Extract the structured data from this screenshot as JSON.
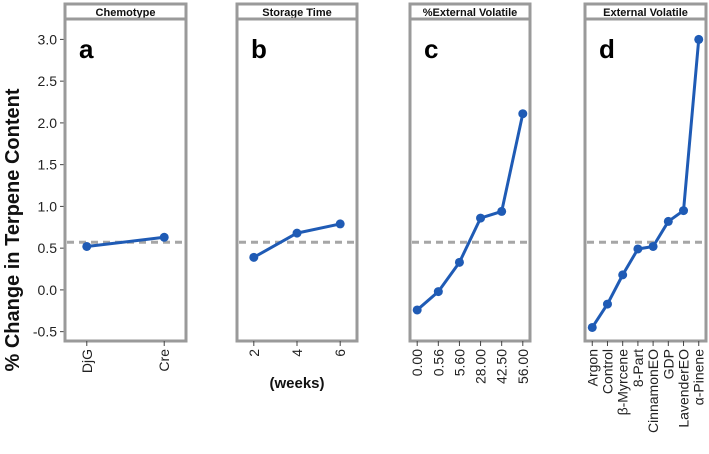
{
  "figure": {
    "ylabel": "% Change in Terpene Content",
    "yticks": [
      3.0,
      2.5,
      2.0,
      1.5,
      1.0,
      0.5,
      0.0,
      -0.5
    ],
    "ytick_labels": [
      "3.0",
      "2.5",
      "2.0",
      "1.5",
      "1.0",
      "0.5",
      "0.0",
      "-0.5"
    ],
    "reference_line": 0.57,
    "colors": {
      "line": "#1f5bb5",
      "reference": "#a6a6a6",
      "frame": "#9a9a9a",
      "strip_bg": "#ffffff"
    }
  },
  "chart_data": [
    {
      "type": "line",
      "panel_letter": "a",
      "title": "Chemotype",
      "xlabel": "",
      "ylabel": "% Change in Terpene Content",
      "categories": [
        "DjG",
        "Cre"
      ],
      "values": [
        0.52,
        0.63
      ],
      "ylim": [
        -0.58,
        3.1
      ]
    },
    {
      "type": "line",
      "panel_letter": "b",
      "title": "Storage Time",
      "xlabel": "(weeks)",
      "ylabel": "% Change in Terpene Content",
      "categories": [
        "2",
        "4",
        "6"
      ],
      "values": [
        0.39,
        0.68,
        0.79
      ],
      "ylim": [
        -0.58,
        3.1
      ]
    },
    {
      "type": "line",
      "panel_letter": "c",
      "title": "%External Volatile",
      "xlabel": "",
      "ylabel": "% Change in Terpene Content",
      "categories": [
        "0.00",
        "0.56",
        "5.60",
        "28.00",
        "42.50",
        "56.00"
      ],
      "values": [
        -0.24,
        -0.02,
        0.33,
        0.86,
        0.94,
        2.11
      ],
      "ylim": [
        -0.58,
        3.1
      ]
    },
    {
      "type": "line",
      "panel_letter": "d",
      "title": "External Volatile",
      "xlabel": "",
      "ylabel": "% Change in Terpene Content",
      "categories": [
        "Argon",
        "Control",
        "β-Myrcene",
        "8-Part",
        "CinnamonEO",
        "GDP",
        "LavenderEO",
        "α-Pinene"
      ],
      "values": [
        -0.45,
        -0.17,
        0.18,
        0.49,
        0.52,
        0.82,
        0.95,
        3.0
      ],
      "ylim": [
        -0.58,
        3.1
      ]
    }
  ]
}
